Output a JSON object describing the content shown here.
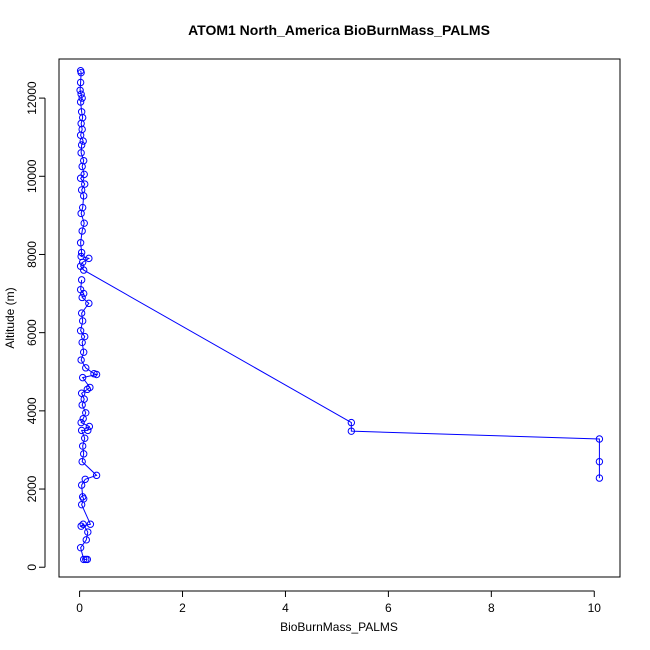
{
  "chart_data": {
    "type": "line",
    "title": "ATOM1 North_America BioBurnMass_PALMS",
    "xlabel": "BioBurnMass_PALMS",
    "ylabel": "Altitude (m)",
    "xlim": [
      -0.4,
      10.5
    ],
    "ylim": [
      -250,
      13000
    ],
    "xticks": [
      0,
      2,
      4,
      6,
      8,
      10
    ],
    "yticks": [
      0,
      2000,
      4000,
      6000,
      8000,
      10000,
      12000
    ],
    "xtick_labels": [
      "0",
      "2",
      "4",
      "6",
      "8",
      "10"
    ],
    "ytick_labels": [
      "0",
      "2000",
      "4000",
      "6000",
      "8000",
      "10000",
      "12000"
    ],
    "color": "#0000ff",
    "marker": "open-circle",
    "grid": false,
    "series": [
      {
        "points": [
          [
            0.02,
            12700
          ],
          [
            0.03,
            12650
          ],
          [
            0.02,
            12400
          ],
          [
            0.01,
            12200
          ],
          [
            0.03,
            12100
          ],
          [
            0.05,
            12000
          ],
          [
            0.02,
            11900
          ],
          [
            0.04,
            11650
          ],
          [
            0.06,
            11500
          ],
          [
            0.03,
            11350
          ],
          [
            0.05,
            11200
          ],
          [
            0.02,
            11050
          ],
          [
            0.07,
            10900
          ],
          [
            0.04,
            10800
          ],
          [
            0.03,
            10600
          ],
          [
            0.08,
            10400
          ],
          [
            0.05,
            10250
          ],
          [
            0.09,
            10050
          ],
          [
            0.02,
            9950
          ],
          [
            0.1,
            9800
          ],
          [
            0.04,
            9650
          ],
          [
            0.08,
            9500
          ],
          [
            0.06,
            9200
          ],
          [
            0.03,
            9050
          ],
          [
            0.09,
            8800
          ],
          [
            0.05,
            8600
          ],
          [
            0.02,
            8300
          ],
          [
            0.04,
            8050
          ],
          [
            0.03,
            7950
          ],
          [
            0.18,
            7900
          ],
          [
            0.06,
            7800
          ],
          [
            0.02,
            7700
          ],
          [
            0.08,
            7600
          ],
          [
            5.28,
            3700
          ],
          [
            5.28,
            3480
          ],
          [
            10.1,
            3280
          ],
          [
            10.1,
            2700
          ],
          [
            10.1,
            2280
          ]
        ]
      },
      {
        "points": [
          [
            0.04,
            7350
          ],
          [
            0.02,
            7100
          ],
          [
            0.08,
            7000
          ],
          [
            0.05,
            6900
          ],
          [
            0.18,
            6750
          ],
          [
            0.04,
            6500
          ],
          [
            0.06,
            6300
          ],
          [
            0.02,
            6050
          ],
          [
            0.1,
            5900
          ],
          [
            0.05,
            5750
          ],
          [
            0.08,
            5500
          ],
          [
            0.03,
            5300
          ],
          [
            0.12,
            5100
          ],
          [
            0.28,
            4950
          ],
          [
            0.33,
            4930
          ],
          [
            0.06,
            4850
          ],
          [
            0.2,
            4600
          ],
          [
            0.15,
            4550
          ],
          [
            0.04,
            4450
          ],
          [
            0.09,
            4300
          ],
          [
            0.05,
            4150
          ],
          [
            0.12,
            3950
          ],
          [
            0.07,
            3800
          ],
          [
            0.03,
            3700
          ],
          [
            0.19,
            3600
          ],
          [
            0.16,
            3500
          ],
          [
            0.04,
            3500
          ],
          [
            0.1,
            3300
          ],
          [
            0.06,
            3100
          ],
          [
            0.08,
            2900
          ],
          [
            0.05,
            2700
          ],
          [
            0.33,
            2350
          ],
          [
            0.11,
            2250
          ],
          [
            0.04,
            2100
          ],
          [
            0.06,
            1800
          ],
          [
            0.08,
            1750
          ],
          [
            0.04,
            1600
          ],
          [
            0.21,
            1100
          ],
          [
            0.03,
            1050
          ],
          [
            0.07,
            1100
          ],
          [
            0.16,
            900
          ],
          [
            0.13,
            700
          ],
          [
            0.02,
            500
          ],
          [
            0.08,
            200
          ],
          [
            0.12,
            200
          ],
          [
            0.15,
            200
          ]
        ]
      }
    ]
  }
}
